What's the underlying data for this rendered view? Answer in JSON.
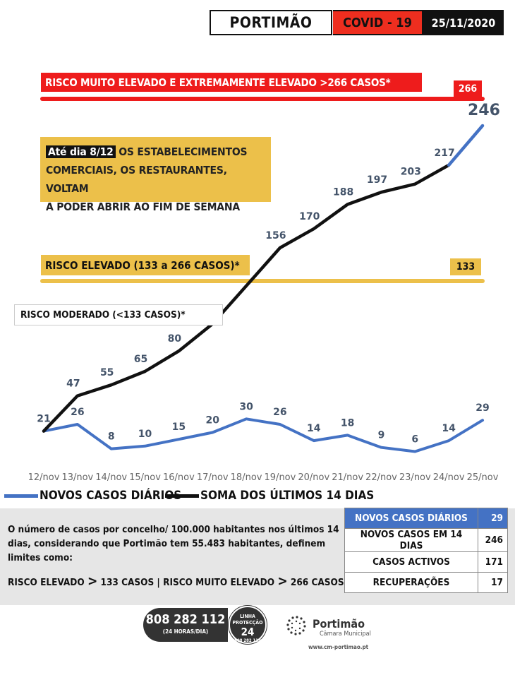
{
  "header": {
    "town": "PORTIMÃO",
    "badge": "COVID - 19",
    "date": "25/11/2020"
  },
  "risk": {
    "very_high_label": "RISCO MUITO ELEVADO E EXTREMAMENTE ELEVADO >266 CASOS*",
    "very_high_threshold": "266",
    "high_label": "RISCO ELEVADO (133 a 266 CASOS)*",
    "high_threshold": "133",
    "moderate_label": "RISCO MODERADO (<133 CASOS)*"
  },
  "info_box": {
    "highlight": "Até dia 8/12",
    "line1_rest": " OS ESTABELECIMENTOS",
    "line2": "COMERCIAIS, OS RESTAURANTES, VOLTAM",
    "line3": "A PODER ABRIR AO FIM DE SEMANA"
  },
  "colors": {
    "red": "#ee1c1c",
    "yellow": "#ecc04a",
    "blue": "#4472c4",
    "black": "#111111",
    "label_blue": "#44546a"
  },
  "chart_data": {
    "type": "line",
    "categories": [
      "12/nov",
      "13/nov",
      "14/nov",
      "15/nov",
      "16/nov",
      "17/nov",
      "18/nov",
      "19/nov",
      "20/nov",
      "21/nov",
      "22/nov",
      "23/nov",
      "24/nov",
      "25/nov"
    ],
    "series": [
      {
        "name": "NOVOS CASOS DIÁRIOS",
        "color": "#4472c4",
        "values": [
          21,
          26,
          8,
          10,
          15,
          20,
          30,
          26,
          14,
          18,
          9,
          6,
          14,
          29
        ]
      },
      {
        "name": "SOMA DOS ÚLTIMOS 14 DIAS",
        "color": "#111111",
        "values": [
          21,
          47,
          55,
          65,
          80,
          100,
          128,
          156,
          170,
          188,
          197,
          203,
          217,
          246
        ]
      }
    ],
    "data_labels": {
      "daily": [
        "21",
        "26",
        "8",
        "10",
        "15",
        "20",
        "30",
        "26",
        "14",
        "18",
        "9",
        "6",
        "14",
        "29"
      ],
      "sum": [
        "",
        "47",
        "55",
        "65",
        "80",
        "100",
        "",
        "156",
        "170",
        "188",
        "197",
        "203",
        "217",
        "246"
      ]
    },
    "reference_lines": [
      {
        "value": 266,
        "color": "#ee1c1c"
      },
      {
        "value": 133,
        "color": "#ecc04a"
      }
    ],
    "legend_position": "bottom-left",
    "grid": false
  },
  "legend": {
    "daily": "NOVOS CASOS DIÁRIOS",
    "sum": "SOMA DOS ÚLTIMOS 14 DIAS"
  },
  "panel": {
    "text": "O número de casos por concelho/ 100.000 habitantes nos últimos 14 dias, considerando que Portimão tem 55.483 habitantes, definem limites como:",
    "limit_high_prefix": "RISCO ELEVADO ",
    "limit_high_symbol": ">",
    "limit_high_value": " 133 CASOS  |  RISCO MUITO ELEVADO ",
    "limit_very_high_symbol": ">",
    "limit_very_high_value": " 266 CASOS"
  },
  "stats": [
    {
      "label": "NOVOS CASOS DIÁRIOS",
      "value": "29"
    },
    {
      "label": "NOVOS CASOS EM 14 DIAS",
      "value": "246"
    },
    {
      "label": "CASOS ACTIVOS",
      "value": "171"
    },
    {
      "label": "RECUPERAÇÕES",
      "value": "17"
    }
  ],
  "footer": {
    "phone": "808 282 112",
    "phone_hours": "(24 HORAS/DIA)",
    "badge_top": "LINHA",
    "badge_mid": "PROTECÇÃO",
    "badge_num": "24",
    "badge_phone": "808 282 112",
    "logo_name": "Portimão",
    "logo_sub": "Câmara Municipal",
    "logo_url": "www.cm-portimao.pt"
  }
}
